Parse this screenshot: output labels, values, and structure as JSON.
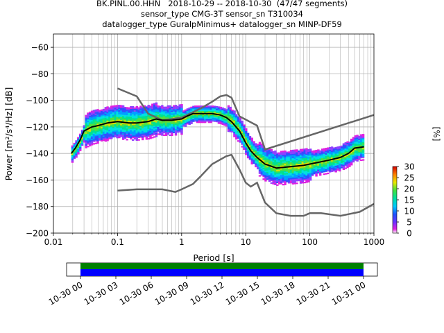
{
  "header": {
    "title_line_1": "BK.PINL.00.HHN   2018-10-29 -- 2018-10-30  (47/47 segments)",
    "title_line_2": "sensor_type CMG-3T sensor_sn T310034",
    "title_line_3": "datalogger_type GuralpMinimus+ datalogger_sn MINP-DF59"
  },
  "colors": {
    "mean_curve": "#000000",
    "noise_models": "#666666",
    "grid": "#b0b0b0",
    "timeline_top": "#008000",
    "timeline_bottom": "#0000ff"
  },
  "chart_data": [
    {
      "type": "heatmap",
      "title": "",
      "xlabel": "Period [s]",
      "ylabel": "Power [m²/s⁴/Hz] [dB]",
      "x_scale": "log",
      "xlim": [
        0.01,
        1000
      ],
      "ylim": [
        -200,
        -50
      ],
      "x_ticks": [
        {
          "value": 0.01,
          "label": "0.01"
        },
        {
          "value": 0.1,
          "label": "0.1"
        },
        {
          "value": 1,
          "label": "1"
        },
        {
          "value": 10,
          "label": "10"
        },
        {
          "value": 100,
          "label": "100"
        },
        {
          "value": 1000,
          "label": "1000"
        }
      ],
      "y_ticks": [
        -60,
        -80,
        -100,
        -120,
        -140,
        -160,
        -180,
        -200
      ],
      "grid": true,
      "colorbar": {
        "label": "[%]",
        "ticks": [
          0,
          5,
          10,
          15,
          20,
          25,
          30
        ],
        "range": [
          0,
          30
        ]
      },
      "series": [
        {
          "name": "",
          "role": "mean",
          "points": [
            [
              0.019,
              -140
            ],
            [
              0.022,
              -136
            ],
            [
              0.026,
              -130
            ],
            [
              0.03,
              -123
            ],
            [
              0.04,
              -120
            ],
            [
              0.05,
              -119
            ],
            [
              0.07,
              -117
            ],
            [
              0.1,
              -116
            ],
            [
              0.15,
              -117
            ],
            [
              0.2,
              -117
            ],
            [
              0.3,
              -116
            ],
            [
              0.4,
              -114
            ],
            [
              0.5,
              -115
            ],
            [
              0.7,
              -115
            ],
            [
              1,
              -114
            ],
            [
              1.2,
              -112
            ],
            [
              1.5,
              -110
            ],
            [
              2,
              -110
            ],
            [
              3,
              -110
            ],
            [
              4,
              -111
            ],
            [
              5,
              -113
            ],
            [
              6,
              -116
            ],
            [
              8,
              -123
            ],
            [
              10,
              -132
            ],
            [
              12,
              -138
            ],
            [
              15,
              -143
            ],
            [
              20,
              -148
            ],
            [
              30,
              -151
            ],
            [
              50,
              -150
            ],
            [
              80,
              -149
            ],
            [
              100,
              -148
            ],
            [
              200,
              -145
            ],
            [
              300,
              -143
            ],
            [
              400,
              -140
            ],
            [
              500,
              -136
            ],
            [
              700,
              -135
            ]
          ]
        },
        {
          "name": "",
          "role": "upper-noise-model",
          "points": [
            [
              0.1,
              -91
            ],
            [
              0.2,
              -97
            ],
            [
              0.3,
              -110
            ],
            [
              0.5,
              -115
            ],
            [
              1,
              -113
            ],
            [
              2,
              -106
            ],
            [
              3,
              -101
            ],
            [
              4,
              -97
            ],
            [
              5,
              -96
            ],
            [
              6,
              -98
            ],
            [
              8,
              -112
            ],
            [
              15,
              -119
            ],
            [
              20,
              -137
            ],
            [
              1000,
              -111
            ]
          ]
        },
        {
          "name": "",
          "role": "lower-noise-model",
          "points": [
            [
              0.1,
              -168
            ],
            [
              0.2,
              -167
            ],
            [
              0.5,
              -167
            ],
            [
              0.8,
              -169
            ],
            [
              1,
              -167
            ],
            [
              1.5,
              -163
            ],
            [
              2,
              -157
            ],
            [
              3,
              -148
            ],
            [
              5,
              -142
            ],
            [
              6,
              -141
            ],
            [
              8,
              -152
            ],
            [
              10,
              -162
            ],
            [
              12,
              -165
            ],
            [
              15,
              -162
            ],
            [
              20,
              -177
            ],
            [
              30,
              -185
            ],
            [
              50,
              -187
            ],
            [
              80,
              -187
            ],
            [
              100,
              -185
            ],
            [
              150,
              -185
            ],
            [
              300,
              -187
            ],
            [
              600,
              -184
            ],
            [
              1000,
              -178
            ]
          ]
        }
      ]
    },
    {
      "type": "timeline",
      "x_ticks": [
        "10-30 00",
        "10-30 03",
        "10-30 06",
        "10-30 09",
        "10-30 12",
        "10-30 15",
        "10-30 18",
        "10-30 21",
        "10-31 00"
      ],
      "coverage": [
        {
          "row": "top",
          "start": "10-30 00",
          "end": "10-31 00"
        },
        {
          "row": "bottom",
          "start": "10-30 00",
          "end": "10-31 00"
        }
      ]
    }
  ]
}
